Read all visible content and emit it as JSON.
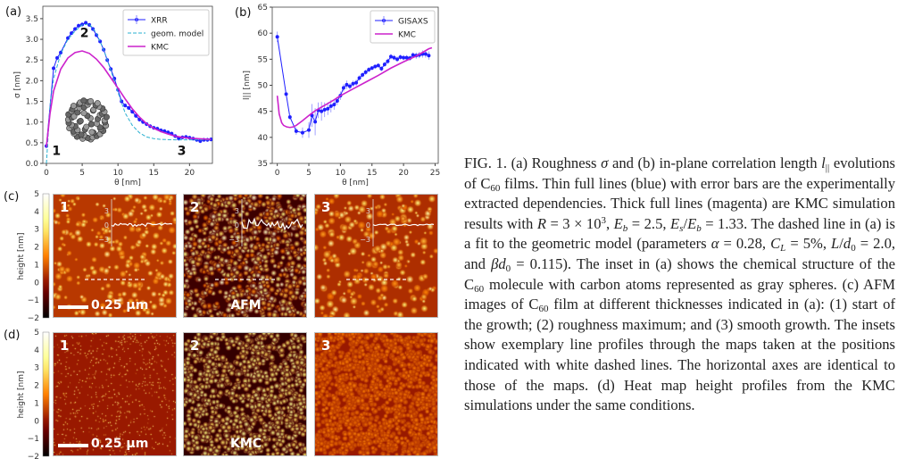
{
  "chart_data": [
    {
      "panel_label": "(a)",
      "type": "line",
      "xlabel": "θ [nm]",
      "ylabel": "σ [nm]",
      "xlim": [
        -0.5,
        23.2
      ],
      "ylim": [
        0,
        3.8
      ],
      "xticks": [
        0,
        5,
        10,
        15,
        20
      ],
      "yticks": [
        0.0,
        0.5,
        1.0,
        1.5,
        2.0,
        2.5,
        3.0,
        3.5
      ],
      "legend_placement": "top-right",
      "annotations": [
        {
          "text": "1",
          "x": 0.8,
          "y": 0.2
        },
        {
          "text": "2",
          "x": 4.7,
          "y": 3.05
        },
        {
          "text": "3",
          "x": 18.3,
          "y": 0.2
        }
      ],
      "series": [
        {
          "name": "XRR",
          "color": "#1f1fff",
          "style": "line-markers-errorbars",
          "x": [
            0,
            1,
            1.5,
            2,
            3,
            3.5,
            4,
            4.5,
            5,
            5.5,
            6,
            6.5,
            7,
            7.5,
            8,
            8.5,
            9,
            9.5,
            10,
            10.5,
            11,
            11.5,
            12,
            12.5,
            13,
            13.5,
            14,
            14.5,
            15,
            15.5,
            16,
            16.5,
            17,
            17.5,
            18,
            18.5,
            19,
            19.5,
            20,
            20.5,
            21,
            21.5,
            22,
            22.5,
            23
          ],
          "y": [
            0.42,
            2.3,
            2.55,
            2.68,
            3.03,
            3.15,
            3.25,
            3.33,
            3.36,
            3.4,
            3.35,
            3.25,
            3.1,
            2.95,
            2.75,
            2.5,
            2.28,
            2.05,
            1.78,
            1.5,
            1.4,
            1.34,
            1.25,
            1.15,
            1.06,
            1.0,
            0.95,
            0.9,
            0.86,
            0.84,
            0.8,
            0.78,
            0.75,
            0.72,
            0.66,
            0.6,
            0.63,
            0.64,
            0.62,
            0.6,
            0.57,
            0.54,
            0.57,
            0.57,
            0.58
          ]
        },
        {
          "name": "geom. model",
          "color": "#2ab0d0",
          "style": "dashed",
          "x": [
            0,
            0.5,
            1,
            2,
            3,
            4,
            5,
            6,
            7,
            8,
            9,
            10,
            11,
            12,
            13,
            14,
            15,
            16,
            18,
            20,
            23
          ],
          "y": [
            0,
            1.4,
            2.05,
            2.65,
            3.0,
            3.2,
            3.35,
            3.37,
            3.15,
            2.75,
            2.25,
            1.72,
            1.22,
            0.92,
            0.74,
            0.64,
            0.6,
            0.58,
            0.57,
            0.57,
            0.57
          ]
        },
        {
          "name": "KMC",
          "color": "#cc22cc",
          "style": "solid",
          "x": [
            0,
            0.5,
            1,
            2,
            3,
            4,
            5,
            6,
            7,
            8,
            9,
            10,
            11,
            12,
            13,
            14,
            15,
            16,
            17,
            18,
            19,
            20,
            22,
            23
          ],
          "y": [
            0.4,
            1.2,
            1.75,
            2.28,
            2.55,
            2.68,
            2.72,
            2.66,
            2.52,
            2.32,
            2.07,
            1.82,
            1.56,
            1.32,
            1.12,
            0.96,
            0.85,
            0.77,
            0.71,
            0.66,
            0.63,
            0.61,
            0.59,
            0.58
          ]
        }
      ]
    },
    {
      "panel_label": "(b)",
      "type": "line",
      "xlabel": "θ [nm]",
      "ylabel": "l|| [nm]",
      "xlim": [
        -0.8,
        25.5
      ],
      "ylim": [
        35,
        65
      ],
      "xticks": [
        0,
        5,
        10,
        15,
        20,
        25
      ],
      "yticks": [
        35,
        40,
        45,
        50,
        55,
        60,
        65
      ],
      "legend_placement": "top-right",
      "series": [
        {
          "name": "GISAXS",
          "color": "#1f1fff",
          "style": "line-markers-errorbars",
          "x": [
            0,
            1.4,
            2,
            3,
            4,
            5,
            5.5,
            6,
            6.5,
            7,
            7.5,
            8,
            8.5,
            9,
            9.5,
            10,
            10.5,
            11,
            11.5,
            12,
            12.5,
            13,
            13.5,
            14,
            14.5,
            15,
            15.5,
            16,
            16.5,
            17,
            17.5,
            18,
            18.5,
            19,
            19.5,
            20,
            20.5,
            21,
            21.5,
            22,
            22.5,
            23,
            23.5,
            24
          ],
          "y": [
            59.3,
            48.3,
            43.9,
            41.2,
            40.9,
            41.4,
            44.2,
            43.0,
            45.2,
            45.0,
            45.3,
            45.5,
            46.0,
            46.3,
            47.0,
            48.0,
            49.5,
            50.1,
            49.8,
            50.3,
            50.5,
            51.4,
            52.0,
            52.5,
            53.0,
            53.3,
            53.6,
            53.8,
            53.2,
            54.0,
            54.6,
            55.5,
            55.3,
            55.0,
            55.4,
            55.3,
            55.3,
            55.2,
            55.8,
            55.7,
            55.8,
            56.0,
            56.0,
            55.7
          ],
          "err": [
            1.0,
            0.5,
            0.5,
            0.7,
            1.0,
            1.5,
            2.2,
            2.6,
            1.5,
            1.8,
            1.4,
            1.2,
            1.2,
            1.0,
            0.8,
            0.8,
            0.7,
            0.8,
            0.6,
            0.6,
            0.6,
            0.5,
            0.5,
            0.5,
            0.5,
            0.4,
            0.4,
            0.4,
            0.5,
            0.5,
            0.5,
            0.5,
            0.5,
            0.5,
            0.5,
            0.5,
            0.5,
            0.5,
            0.5,
            0.6,
            0.6,
            0.7,
            0.7,
            0.8
          ]
        },
        {
          "name": "KMC",
          "color": "#cc22cc",
          "style": "solid",
          "x": [
            0,
            0.3,
            0.7,
            1,
            1.5,
            2,
            2.5,
            3,
            4,
            5,
            6,
            7,
            8,
            9,
            10,
            12,
            14,
            16,
            18,
            20,
            22,
            23,
            24,
            24.5
          ],
          "y": [
            48,
            44.5,
            42.8,
            42.3,
            42.0,
            41.9,
            42.0,
            42.3,
            43.2,
            44.2,
            45.1,
            45.8,
            46.5,
            47.2,
            48.0,
            49.3,
            50.6,
            51.9,
            53.3,
            54.5,
            55.6,
            56.3,
            57.0,
            57.2
          ]
        }
      ]
    }
  ],
  "panels": {
    "c_label": "(c)",
    "d_label": "(d)",
    "colorbar_label": "height [nm]",
    "colorbar_ticks": [
      "5",
      "4",
      "3",
      "2",
      "1",
      "0",
      "−1",
      "−2"
    ],
    "colorbar_range": [
      -2,
      5
    ],
    "colormap": "afmhot",
    "map_numbers": [
      "1",
      "2",
      "3"
    ],
    "scalebar_text": "0.25 μm",
    "afm_label": "AFM",
    "kmc_label": "KMC",
    "inset_ticks": [
      "3",
      "0",
      "−3"
    ]
  },
  "caption": [
    {
      "t": "FIG. 1.   (a) Roughness "
    },
    {
      "t": "σ",
      "i": 1
    },
    {
      "t": " and (b) in-plane correlation length "
    },
    {
      "t": "l",
      "i": 1
    },
    {
      "t": "||",
      "sub": 1
    },
    {
      "t": " evolutions of C"
    },
    {
      "t": "60",
      "sub": 1
    },
    {
      "t": " films. Thin full lines (blue) with error bars are the experimentally extracted dependencies. Thick full lines (magenta) are KMC simulation results with "
    },
    {
      "t": "R",
      "i": 1
    },
    {
      "t": " = 3 × 10"
    },
    {
      "t": "3",
      "sup": 1
    },
    {
      "t": ", "
    },
    {
      "t": "E",
      "i": 1
    },
    {
      "t": "b",
      "sub": 1,
      "i": 1
    },
    {
      "t": " = 2.5, "
    },
    {
      "t": "E",
      "i": 1
    },
    {
      "t": "s",
      "sub": 1,
      "i": 1
    },
    {
      "t": "/"
    },
    {
      "t": "E",
      "i": 1
    },
    {
      "t": "b",
      "sub": 1,
      "i": 1
    },
    {
      "t": " = 1.33. The dashed line in (a) is a fit to the geometric model (parameters "
    },
    {
      "t": "α",
      "i": 1
    },
    {
      "t": " = 0.28, "
    },
    {
      "t": "C",
      "i": 1
    },
    {
      "t": "L",
      "sub": 1,
      "i": 1
    },
    {
      "t": " = 5%, "
    },
    {
      "t": "L",
      "i": 1
    },
    {
      "t": "/"
    },
    {
      "t": "d",
      "i": 1
    },
    {
      "t": "0",
      "sub": 1
    },
    {
      "t": " = 2.0, and "
    },
    {
      "t": "βd",
      "i": 1
    },
    {
      "t": "0",
      "sub": 1
    },
    {
      "t": " = 0.115). The inset in (a) shows the chemical structure of the C"
    },
    {
      "t": "60",
      "sub": 1
    },
    {
      "t": " molecule with carbon atoms represented as gray spheres. (c) AFM images of C"
    },
    {
      "t": "60",
      "sub": 1
    },
    {
      "t": " film at different thicknesses indicated in (a): (1) start of the growth; (2) roughness maximum; and (3) smooth growth. The insets show exemplary line profiles through the maps taken at the positions indicated with white dashed lines. The horizontal axes are identical to those of the maps. (d) Heat map height profiles from the KMC simulations under the same conditions."
    }
  ]
}
